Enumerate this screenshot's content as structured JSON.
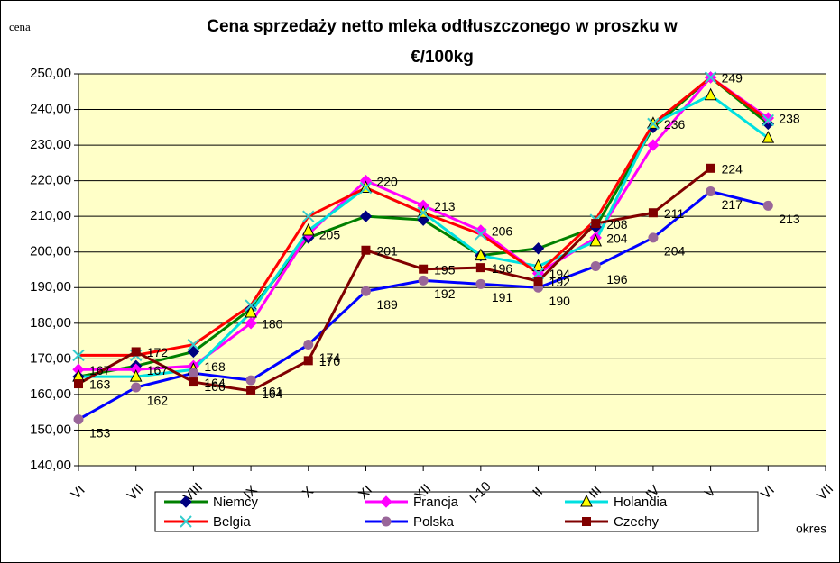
{
  "chart_data": {
    "type": "line",
    "title": "Cena sprzedaży netto mleka odtłuszczonego w proszku w",
    "subtitle": "€/100kg",
    "y_label": "cena",
    "x_label": "okres",
    "categories": [
      "VI",
      "VII",
      "VIII",
      "IX",
      "X",
      "XI",
      "XII",
      "I-10",
      "II",
      "III",
      "IV",
      "V",
      "VI",
      "VII"
    ],
    "ylim": [
      140,
      250
    ],
    "yticks": [
      {
        "value": 140,
        "label": "140,00"
      },
      {
        "value": 150,
        "label": "150,00"
      },
      {
        "value": 160,
        "label": "160,00"
      },
      {
        "value": 170,
        "label": "170,00"
      },
      {
        "value": 180,
        "label": "180,00"
      },
      {
        "value": 190,
        "label": "190,00"
      },
      {
        "value": 200,
        "label": "200,00"
      },
      {
        "value": 210,
        "label": "210,00"
      },
      {
        "value": 220,
        "label": "220,00"
      },
      {
        "value": 230,
        "label": "230,00"
      },
      {
        "value": 240,
        "label": "240,00"
      },
      {
        "value": 250,
        "label": "250,00"
      }
    ],
    "grid": true,
    "series": [
      {
        "name": "Niemcy",
        "color": "#008000",
        "marker": "diamond",
        "marker_color": "#000080",
        "values": [
          165,
          168,
          172,
          184,
          204,
          210,
          209,
          199,
          201,
          207,
          235,
          249,
          236,
          null
        ]
      },
      {
        "name": "Francja",
        "color": "#ff00ff",
        "marker": "diamond",
        "marker_color": "#ff00ff",
        "values": [
          167,
          167,
          168,
          180,
          205,
          220,
          213,
          206,
          194,
          204,
          230,
          249,
          237.6,
          null
        ],
        "value_labels": [
          "167",
          "167",
          "168",
          "180",
          "205",
          "220",
          "213",
          "206",
          "194",
          "204",
          null,
          "249",
          "238",
          null
        ]
      },
      {
        "name": "Holandia",
        "color": "#00e0e0",
        "marker": "triangle",
        "marker_color": "#ffff00",
        "values": [
          165,
          165,
          167,
          183,
          206,
          218,
          211,
          199,
          196,
          203,
          236,
          244,
          232,
          null
        ],
        "value_labels": [
          null,
          null,
          null,
          null,
          null,
          null,
          null,
          null,
          null,
          null,
          "236",
          null,
          null,
          null
        ]
      },
      {
        "name": "Belgia",
        "color": "#ff0000",
        "marker": "x",
        "marker_color": "#33cccc",
        "values": [
          171,
          171,
          174,
          185,
          210,
          218,
          211,
          205,
          194,
          209,
          236,
          249,
          237,
          null
        ]
      },
      {
        "name": "Polska",
        "color": "#0000ff",
        "marker": "circle",
        "marker_color": "#996699",
        "values": [
          153,
          162,
          166,
          164,
          174,
          189,
          192,
          191,
          190,
          196,
          204,
          217,
          213,
          null
        ],
        "value_labels": [
          "153",
          "162",
          "166",
          "164",
          "174",
          "189",
          "192",
          "191",
          "190",
          "196",
          "204",
          "217",
          "213",
          null
        ]
      },
      {
        "name": "Czechy",
        "color": "#800000",
        "marker": "square",
        "marker_color": "#800000",
        "values": [
          163,
          172,
          163.5,
          161,
          169.5,
          200.5,
          195.2,
          195.6,
          191.8,
          208,
          211,
          223.5,
          null,
          null
        ],
        "value_labels": [
          "163",
          "172",
          "164",
          "161",
          "170",
          "201",
          "195",
          "196",
          "192",
          "208",
          "211",
          "224",
          null,
          null
        ]
      }
    ]
  }
}
